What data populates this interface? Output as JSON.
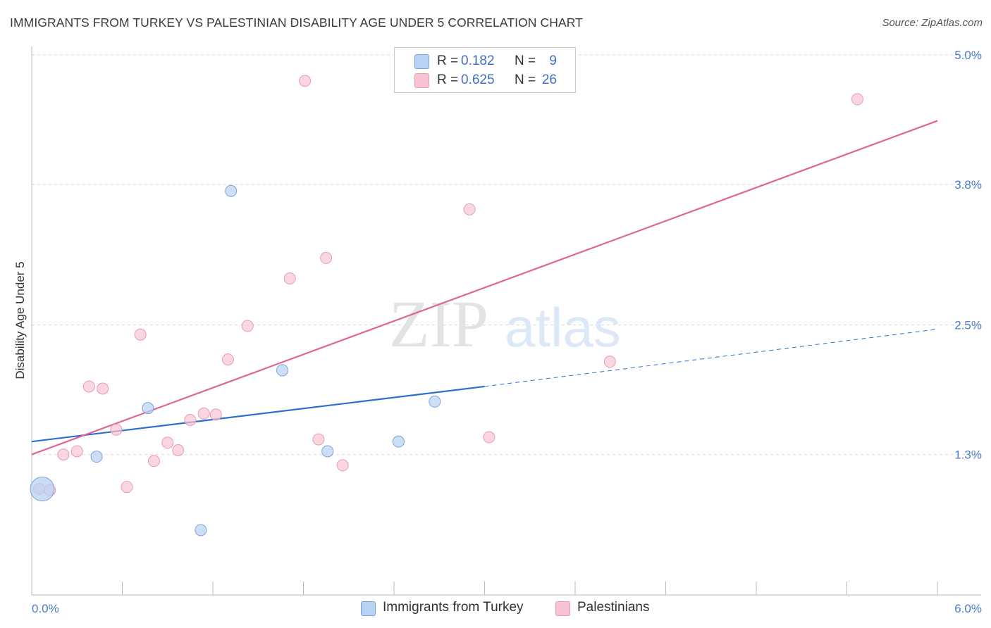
{
  "title": "IMMIGRANTS FROM TURKEY VS PALESTINIAN DISABILITY AGE UNDER 5 CORRELATION CHART",
  "source": "Source: ZipAtlas.com",
  "watermark": {
    "zip": "ZIP",
    "atlas": "atlas"
  },
  "colors": {
    "blue_fill": "#b8d2f4",
    "blue_stroke": "#7aa3d9",
    "blue_line": "#2c6fcf",
    "pink_fill": "#f8c4d3",
    "pink_stroke": "#e99bb2",
    "pink_line": "#e06692",
    "tick_text": "#4a7cc9",
    "grid": "#d9d9d9"
  },
  "legend": {
    "r_label": "R =",
    "n_label": "N =",
    "rows": [
      {
        "r": "0.182",
        "n": "9"
      },
      {
        "r": "0.625",
        "n": "26"
      }
    ]
  },
  "chart_data": {
    "type": "scatter",
    "ylabel": "Disability Age Under 5",
    "xlim": [
      0.0,
      6.0
    ],
    "ylim": [
      0.0,
      5.0
    ],
    "x_tick_labels": [
      "0.0%",
      "6.0%"
    ],
    "y_ticks": [
      1.3,
      2.5,
      3.8,
      5.0
    ],
    "y_tick_labels": [
      "1.3%",
      "2.5%",
      "3.8%",
      "5.0%"
    ],
    "grid": true,
    "series": [
      {
        "name": "Immigrants from Turkey",
        "color": "blue",
        "points": [
          {
            "x": 0.07,
            "y": 0.98,
            "big": true
          },
          {
            "x": 0.43,
            "y": 1.28
          },
          {
            "x": 0.77,
            "y": 1.73
          },
          {
            "x": 1.12,
            "y": 0.6
          },
          {
            "x": 1.32,
            "y": 3.74
          },
          {
            "x": 1.66,
            "y": 2.08
          },
          {
            "x": 1.96,
            "y": 1.33
          },
          {
            "x": 2.43,
            "y": 1.42
          },
          {
            "x": 2.67,
            "y": 1.79
          }
        ],
        "trend": {
          "x0": 0.0,
          "y0": 1.42,
          "x1": 3.0,
          "y1": 1.93,
          "x_ext": 6.0,
          "y_ext": 2.46
        }
      },
      {
        "name": "Palestinians",
        "color": "pink",
        "points": [
          {
            "x": 0.05,
            "y": 0.98
          },
          {
            "x": 0.12,
            "y": 0.97
          },
          {
            "x": 0.21,
            "y": 1.3
          },
          {
            "x": 0.3,
            "y": 1.33
          },
          {
            "x": 0.38,
            "y": 1.93
          },
          {
            "x": 0.47,
            "y": 1.91
          },
          {
            "x": 0.56,
            "y": 1.53
          },
          {
            "x": 0.63,
            "y": 1.0
          },
          {
            "x": 0.72,
            "y": 2.41
          },
          {
            "x": 0.81,
            "y": 1.24
          },
          {
            "x": 0.9,
            "y": 1.41
          },
          {
            "x": 0.97,
            "y": 1.34
          },
          {
            "x": 1.05,
            "y": 1.62
          },
          {
            "x": 1.14,
            "y": 1.68
          },
          {
            "x": 1.22,
            "y": 1.67
          },
          {
            "x": 1.3,
            "y": 2.18
          },
          {
            "x": 1.43,
            "y": 2.49
          },
          {
            "x": 1.71,
            "y": 2.93
          },
          {
            "x": 1.81,
            "y": 4.76
          },
          {
            "x": 1.9,
            "y": 1.44
          },
          {
            "x": 1.95,
            "y": 3.12
          },
          {
            "x": 2.06,
            "y": 1.2
          },
          {
            "x": 2.9,
            "y": 3.57
          },
          {
            "x": 3.03,
            "y": 1.46
          },
          {
            "x": 3.83,
            "y": 2.16
          },
          {
            "x": 5.47,
            "y": 4.59
          }
        ],
        "trend": {
          "x0": 0.0,
          "y0": 1.3,
          "x1": 6.0,
          "y1": 4.39
        }
      }
    ]
  }
}
